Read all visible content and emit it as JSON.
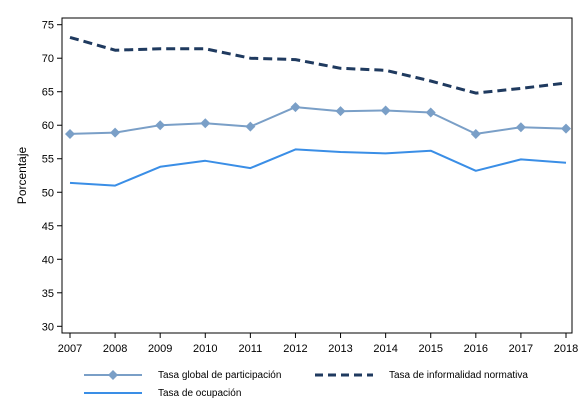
{
  "chart_data": {
    "type": "line",
    "title": "",
    "xlabel": "",
    "ylabel": "Porcentaje",
    "x": [
      "2007",
      "2008",
      "2009",
      "2010",
      "2011",
      "2012",
      "2013",
      "2014",
      "2015",
      "2016",
      "2017",
      "2018"
    ],
    "ylim": [
      29,
      76
    ],
    "yticks": [
      30,
      35,
      40,
      45,
      50,
      55,
      60,
      65,
      70,
      75
    ],
    "grid": false,
    "legend_position": "bottom",
    "series": [
      {
        "name": "Tasa global de participación",
        "color": "#7a9fc7",
        "style": "solid-diamond",
        "values": [
          58.7,
          58.9,
          60.0,
          60.3,
          59.8,
          62.7,
          62.1,
          62.2,
          61.9,
          58.7,
          59.7,
          59.5
        ]
      },
      {
        "name": "Tasa de informalidad normativa",
        "color": "#1f3a5f",
        "style": "dashed",
        "values": [
          73.1,
          71.2,
          71.4,
          71.4,
          70.0,
          69.8,
          68.5,
          68.2,
          66.6,
          64.8,
          65.5,
          66.3
        ]
      },
      {
        "name": "Tasa de ocupación",
        "color": "#3a8ee6",
        "style": "solid",
        "values": [
          51.4,
          51.0,
          53.8,
          54.7,
          53.6,
          56.4,
          56.0,
          55.8,
          56.2,
          53.2,
          54.9,
          54.4
        ]
      }
    ]
  }
}
